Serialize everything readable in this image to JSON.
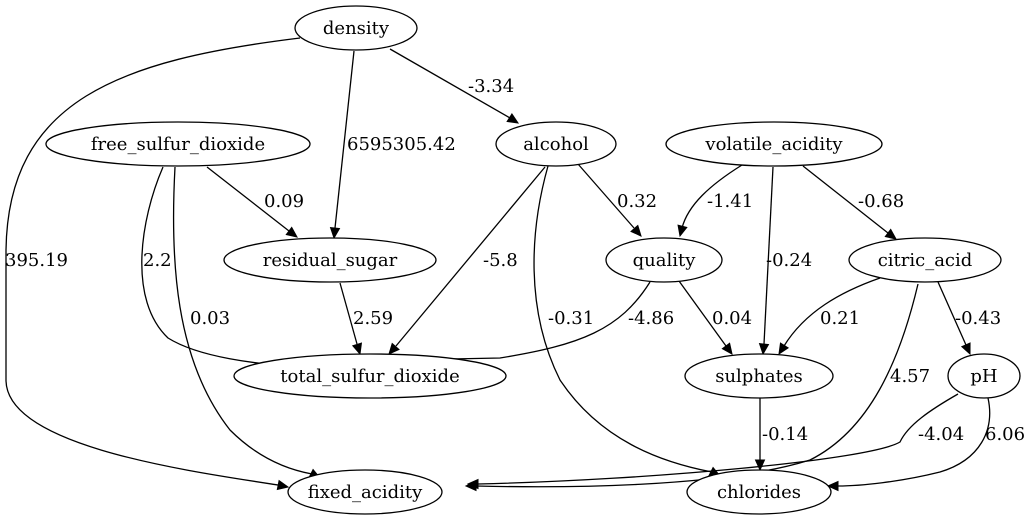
{
  "nodes": {
    "density": "density",
    "free_sulfur_dioxide": "free_sulfur_dioxide",
    "alcohol": "alcohol",
    "volatile_acidity": "volatile_acidity",
    "residual_sugar": "residual_sugar",
    "quality": "quality",
    "citric_acid": "citric_acid",
    "total_sulfur_dioxide": "total_sulfur_dioxide",
    "sulphates": "sulphates",
    "pH": "pH",
    "fixed_acidity": "fixed_acidity",
    "chlorides": "chlorides"
  },
  "edges": [
    {
      "from": "density",
      "to": "alcohol",
      "weight": "-3.34"
    },
    {
      "from": "density",
      "to": "residual_sugar",
      "weight": "6595305.42"
    },
    {
      "from": "density",
      "to": "fixed_acidity",
      "weight": "395.19"
    },
    {
      "from": "free_sulfur_dioxide",
      "to": "residual_sugar",
      "weight": "0.09"
    },
    {
      "from": "free_sulfur_dioxide",
      "to": "total_sulfur_dioxide",
      "weight": "2.2"
    },
    {
      "from": "free_sulfur_dioxide",
      "to": "fixed_acidity",
      "weight": "0.03"
    },
    {
      "from": "alcohol",
      "to": "quality",
      "weight": "0.32"
    },
    {
      "from": "alcohol",
      "to": "total_sulfur_dioxide",
      "weight": "-5.8"
    },
    {
      "from": "alcohol",
      "to": "chlorides",
      "weight": "-0.31"
    },
    {
      "from": "volatile_acidity",
      "to": "quality",
      "weight": "-1.41"
    },
    {
      "from": "volatile_acidity",
      "to": "sulphates",
      "weight": "-0.24"
    },
    {
      "from": "volatile_acidity",
      "to": "citric_acid",
      "weight": "-0.68"
    },
    {
      "from": "residual_sugar",
      "to": "total_sulfur_dioxide",
      "weight": "2.59"
    },
    {
      "from": "quality",
      "to": "total_sulfur_dioxide",
      "weight": "-4.86"
    },
    {
      "from": "quality",
      "to": "sulphates",
      "weight": "0.04"
    },
    {
      "from": "citric_acid",
      "to": "sulphates",
      "weight": "0.21"
    },
    {
      "from": "citric_acid",
      "to": "pH",
      "weight": "-0.43"
    },
    {
      "from": "citric_acid",
      "to": "fixed_acidity",
      "weight": "4.57"
    },
    {
      "from": "sulphates",
      "to": "chlorides",
      "weight": "-0.14"
    },
    {
      "from": "pH",
      "to": "fixed_acidity",
      "weight": "-4.04"
    },
    {
      "from": "pH",
      "to": "chlorides",
      "weight": "6.06"
    }
  ]
}
